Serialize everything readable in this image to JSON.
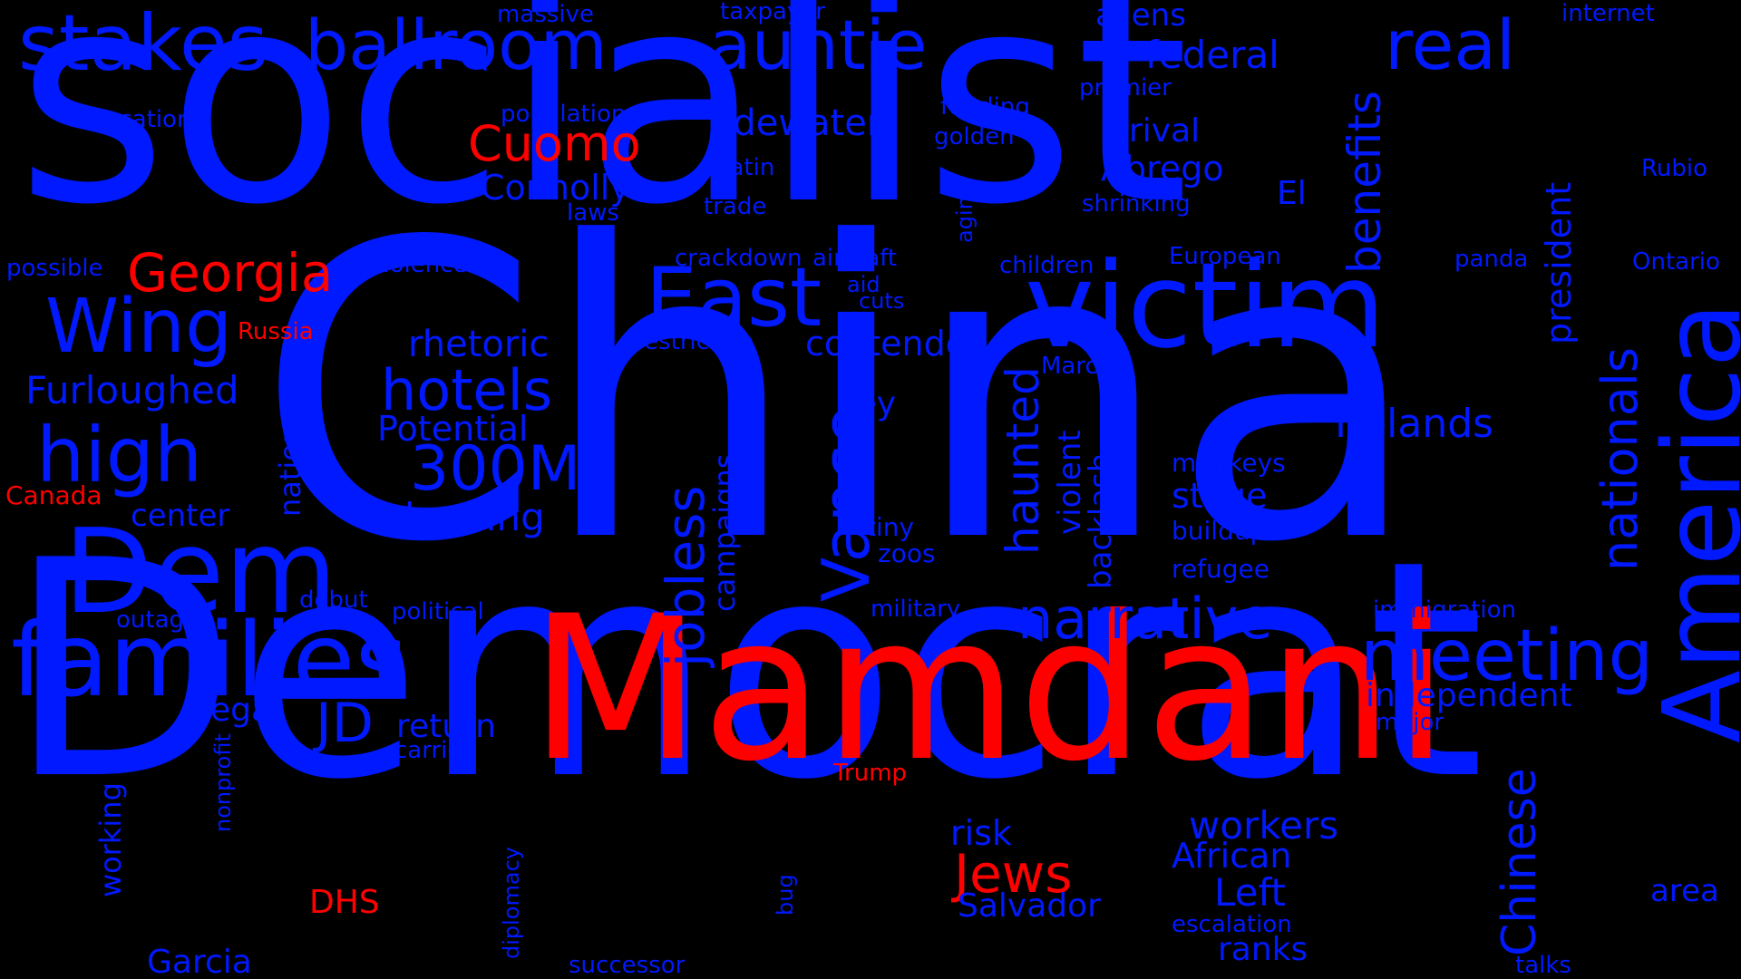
{
  "colors": {
    "background": "#000000",
    "blue": "#0019ff",
    "red": "#ff0000"
  },
  "words": [
    {
      "text": "China",
      "color": "blue"
    },
    {
      "text": "Democrat",
      "color": "blue"
    },
    {
      "text": "socialist",
      "color": "blue"
    },
    {
      "text": "Mamdani",
      "color": "red"
    },
    {
      "text": "victim",
      "color": "blue"
    },
    {
      "text": "America",
      "color": "blue"
    },
    {
      "text": "Dem",
      "color": "blue"
    },
    {
      "text": "families",
      "color": "blue"
    },
    {
      "text": "stakes",
      "color": "blue"
    },
    {
      "text": "ballroom",
      "color": "blue"
    },
    {
      "text": "auntie",
      "color": "blue"
    },
    {
      "text": "real",
      "color": "blue"
    },
    {
      "text": "East",
      "color": "blue"
    },
    {
      "text": "Wing",
      "color": "blue"
    },
    {
      "text": "high",
      "color": "blue"
    },
    {
      "text": "meeting",
      "color": "blue"
    },
    {
      "text": "narrative",
      "color": "blue"
    },
    {
      "text": "Vance",
      "color": "blue"
    },
    {
      "text": "jobless",
      "color": "blue"
    },
    {
      "text": "hotels",
      "color": "blue"
    },
    {
      "text": "300M",
      "color": "blue"
    },
    {
      "text": "JD",
      "color": "blue"
    },
    {
      "text": "Georgia",
      "color": "red"
    },
    {
      "text": "Cuomo",
      "color": "red"
    },
    {
      "text": "Jews",
      "color": "red"
    },
    {
      "text": "benefits",
      "color": "blue"
    },
    {
      "text": "nationals",
      "color": "blue"
    },
    {
      "text": "Chinese",
      "color": "blue"
    },
    {
      "text": "haunted",
      "color": "blue"
    },
    {
      "text": "Irelands",
      "color": "blue"
    },
    {
      "text": "Furloughed",
      "color": "blue"
    },
    {
      "text": "federal",
      "color": "blue"
    },
    {
      "text": "aliens",
      "color": "blue"
    },
    {
      "text": "Tidewater",
      "color": "blue"
    },
    {
      "text": "Connolly",
      "color": "blue"
    },
    {
      "text": "Abrego",
      "color": "blue"
    },
    {
      "text": "rival",
      "color": "blue"
    },
    {
      "text": "El",
      "color": "blue"
    },
    {
      "text": "rhetoric",
      "color": "blue"
    },
    {
      "text": "contender",
      "color": "blue"
    },
    {
      "text": "Potential",
      "color": "blue"
    },
    {
      "text": "leaning",
      "color": "blue"
    },
    {
      "text": "center",
      "color": "blue"
    },
    {
      "text": "key",
      "color": "blue"
    },
    {
      "text": "stage",
      "color": "blue"
    },
    {
      "text": "independent",
      "color": "blue"
    },
    {
      "text": "return",
      "color": "blue"
    },
    {
      "text": "illegal",
      "color": "blue"
    },
    {
      "text": "workers",
      "color": "blue"
    },
    {
      "text": "African",
      "color": "blue"
    },
    {
      "text": "Left",
      "color": "blue"
    },
    {
      "text": "Salvador",
      "color": "blue"
    },
    {
      "text": "risk",
      "color": "blue"
    },
    {
      "text": "ranks",
      "color": "blue"
    },
    {
      "text": "Garcia",
      "color": "blue"
    },
    {
      "text": "area",
      "color": "blue"
    },
    {
      "text": "DHS",
      "color": "red"
    },
    {
      "text": "president",
      "color": "blue"
    },
    {
      "text": "violent",
      "color": "blue"
    },
    {
      "text": "backlash",
      "color": "blue"
    },
    {
      "text": "campaigns",
      "color": "blue"
    },
    {
      "text": "nation",
      "color": "blue"
    },
    {
      "text": "working",
      "color": "blue"
    },
    {
      "text": "massive",
      "color": "blue"
    },
    {
      "text": "taxpayer",
      "color": "blue"
    },
    {
      "text": "internet",
      "color": "blue"
    },
    {
      "text": "premier",
      "color": "blue"
    },
    {
      "text": "Education",
      "color": "blue"
    },
    {
      "text": "population",
      "color": "blue"
    },
    {
      "text": "funding",
      "color": "blue"
    },
    {
      "text": "golden",
      "color": "blue"
    },
    {
      "text": "Latin",
      "color": "blue"
    },
    {
      "text": "trade",
      "color": "blue"
    },
    {
      "text": "laws",
      "color": "blue"
    },
    {
      "text": "shrinking",
      "color": "blue"
    },
    {
      "text": "Rubio",
      "color": "blue"
    },
    {
      "text": "possible",
      "color": "blue"
    },
    {
      "text": "violence",
      "color": "blue"
    },
    {
      "text": "crackdown",
      "color": "blue"
    },
    {
      "text": "aircraft",
      "color": "blue"
    },
    {
      "text": "children",
      "color": "blue"
    },
    {
      "text": "European",
      "color": "blue"
    },
    {
      "text": "panda",
      "color": "blue"
    },
    {
      "text": "Ontario",
      "color": "blue"
    },
    {
      "text": "aid",
      "color": "blue"
    },
    {
      "text": "cuts",
      "color": "blue"
    },
    {
      "text": "aging",
      "color": "blue"
    },
    {
      "text": "restrictive",
      "color": "blue"
    },
    {
      "text": "Marco",
      "color": "blue"
    },
    {
      "text": "Russia",
      "color": "red"
    },
    {
      "text": "Canada",
      "color": "red"
    },
    {
      "text": "Trump",
      "color": "red"
    },
    {
      "text": "monkeys",
      "color": "blue"
    },
    {
      "text": "buildup",
      "color": "blue"
    },
    {
      "text": "refugee",
      "color": "blue"
    },
    {
      "text": "rare",
      "color": "blue"
    },
    {
      "text": "tiny",
      "color": "blue"
    },
    {
      "text": "zoos",
      "color": "blue"
    },
    {
      "text": "military",
      "color": "blue"
    },
    {
      "text": "immigration",
      "color": "blue"
    },
    {
      "text": "major",
      "color": "blue"
    },
    {
      "text": "debut",
      "color": "blue"
    },
    {
      "text": "outage",
      "color": "blue"
    },
    {
      "text": "political",
      "color": "blue"
    },
    {
      "text": "carrier",
      "color": "blue"
    },
    {
      "text": "nonprofit",
      "color": "blue"
    },
    {
      "text": "diplomacy",
      "color": "blue"
    },
    {
      "text": "bug",
      "color": "blue"
    },
    {
      "text": "successor",
      "color": "blue"
    },
    {
      "text": "escalation",
      "color": "blue"
    },
    {
      "text": "talks",
      "color": "blue"
    }
  ]
}
